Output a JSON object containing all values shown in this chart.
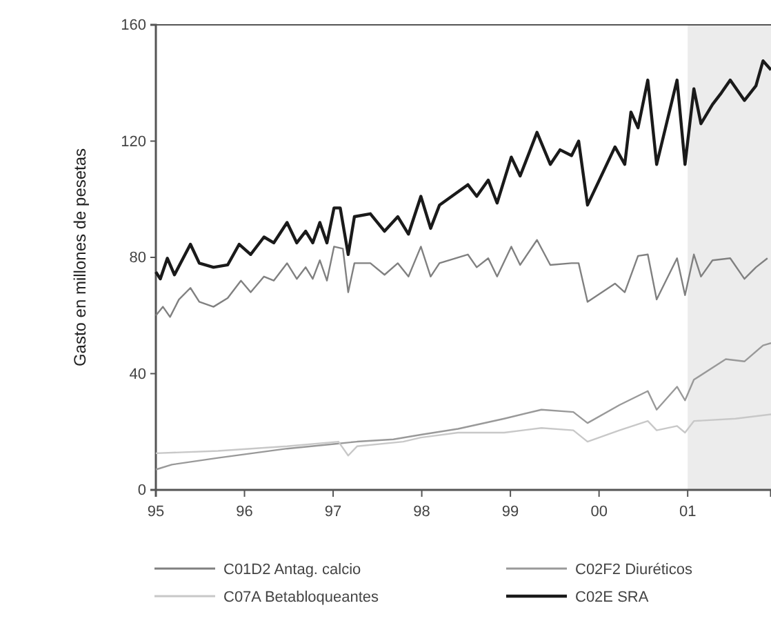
{
  "chart_data": {
    "type": "line",
    "ylabel": "Gasto en millones de pesetas",
    "xlim": [
      1995,
      2001.94
    ],
    "ylim": [
      0,
      160
    ],
    "xticks": [
      {
        "value": 1995,
        "label": "95"
      },
      {
        "value": 1996,
        "label": "96"
      },
      {
        "value": 1997,
        "label": "97"
      },
      {
        "value": 1998,
        "label": "98"
      },
      {
        "value": 1999,
        "label": "99"
      },
      {
        "value": 2000,
        "label": "00"
      },
      {
        "value": 2001,
        "label": "01"
      }
    ],
    "yticks": [
      0,
      40,
      80,
      120,
      160
    ],
    "grid": false,
    "legend": "bottom",
    "line_style": "solid",
    "marker": "none",
    "bands": [
      {
        "axis": "x",
        "from": 2001,
        "to": 2001.94,
        "color": "#ececec"
      }
    ],
    "series": [
      {
        "name": "C01D2 Antag. calcio",
        "color": "#808080",
        "x": [
          1995.0,
          1995.08,
          1995.16,
          1995.26,
          1995.39,
          1995.49,
          1995.65,
          1995.81,
          1995.96,
          1996.07,
          1996.22,
          1996.33,
          1996.48,
          1996.59,
          1996.69,
          1996.77,
          1996.85,
          1996.93,
          1997.01,
          1997.11,
          1997.17,
          1997.24,
          1997.42,
          1997.58,
          1997.73,
          1997.85,
          1997.99,
          1998.1,
          1998.2,
          1998.52,
          1998.62,
          1998.75,
          1998.85,
          1999.01,
          1999.11,
          1999.3,
          1999.45,
          1999.69,
          1999.77,
          1999.87,
          2000.18,
          2000.29,
          2000.44,
          2000.55,
          2000.65,
          2000.88,
          2000.97,
          2001.07,
          2001.15,
          2001.28,
          2001.48,
          2001.64,
          2001.77,
          2001.9
        ],
        "values": [
          60,
          63,
          59.5,
          65.5,
          69.5,
          64.7,
          63,
          66,
          72,
          68,
          73.4,
          72,
          78,
          72.6,
          76.6,
          72.6,
          79,
          72,
          83.7,
          83,
          68,
          78,
          78,
          74,
          78,
          73.4,
          83.7,
          73.4,
          78,
          81,
          76.6,
          79.7,
          73.4,
          83.7,
          77.4,
          86,
          77.4,
          78,
          78,
          64.7,
          71,
          68,
          80.5,
          81,
          65.5,
          79.7,
          67,
          81,
          73.4,
          79,
          79.7,
          72.6,
          76.6,
          79.7
        ]
      },
      {
        "name": "C02F2 Diuréticos",
        "color": "#999999",
        "x": [
          1995.0,
          1995.18,
          1995.7,
          1996.48,
          1997.01,
          1997.27,
          1997.68,
          1997.99,
          1998.41,
          1998.93,
          1999.35,
          1999.71,
          1999.87,
          2000.23,
          2000.55,
          2000.65,
          2000.88,
          2000.97,
          2001.07,
          2001.43,
          2001.64,
          2001.85,
          2001.94
        ],
        "values": [
          7,
          8.7,
          11,
          14.2,
          15.8,
          16.6,
          17.4,
          19,
          21,
          24.5,
          27.6,
          26.8,
          23,
          29.2,
          34,
          27.6,
          35.5,
          30.8,
          37.9,
          45,
          44.2,
          49.7,
          50.5
        ]
      },
      {
        "name": "C07A Betabloqueantes",
        "color": "#c8c8c8",
        "x": [
          1995.0,
          1995.7,
          1996.48,
          1997.06,
          1997.17,
          1997.27,
          1997.79,
          1997.99,
          1998.41,
          1998.93,
          1999.35,
          1999.71,
          1999.87,
          2000.23,
          2000.55,
          2000.65,
          2000.88,
          2000.97,
          2001.07,
          2001.54,
          2001.94
        ],
        "values": [
          12.6,
          13.4,
          15,
          16.6,
          11.8,
          15,
          16.6,
          18,
          19.7,
          19.7,
          21.3,
          20.5,
          16.6,
          20.5,
          23.7,
          20.5,
          22,
          19.7,
          23.7,
          24.5,
          26
        ]
      },
      {
        "name": "C02E SRA",
        "color": "#1a1a1a",
        "x": [
          1995.0,
          1995.05,
          1995.13,
          1995.21,
          1995.39,
          1995.49,
          1995.65,
          1995.81,
          1995.94,
          1996.07,
          1996.22,
          1996.33,
          1996.48,
          1996.59,
          1996.69,
          1996.77,
          1996.85,
          1996.93,
          1997.01,
          1997.08,
          1997.17,
          1997.24,
          1997.42,
          1997.58,
          1997.73,
          1997.85,
          1997.99,
          1998.1,
          1998.2,
          1998.52,
          1998.62,
          1998.75,
          1998.85,
          1999.01,
          1999.11,
          1999.3,
          1999.45,
          1999.56,
          1999.69,
          1999.77,
          1999.87,
          2000.18,
          2000.29,
          2000.36,
          2000.44,
          2000.55,
          2000.65,
          2000.88,
          2000.97,
          2001.07,
          2001.15,
          2001.28,
          2001.38,
          2001.48,
          2001.64,
          2001.77,
          2001.85,
          2001.94
        ],
        "values": [
          75,
          72.6,
          79.7,
          74,
          84.5,
          78,
          76.6,
          77.4,
          84.5,
          81,
          87,
          85,
          92,
          85,
          89,
          85,
          92,
          85,
          97,
          97,
          81,
          94,
          95,
          89,
          94,
          88,
          101,
          90,
          98,
          105,
          101,
          106.6,
          98.7,
          114.5,
          108,
          123,
          112,
          117,
          115,
          120,
          98,
          118,
          112,
          130,
          124.6,
          141,
          112,
          141,
          112,
          138,
          126,
          132.6,
          136.6,
          141,
          134,
          139,
          147.6,
          144.5
        ]
      }
    ]
  }
}
